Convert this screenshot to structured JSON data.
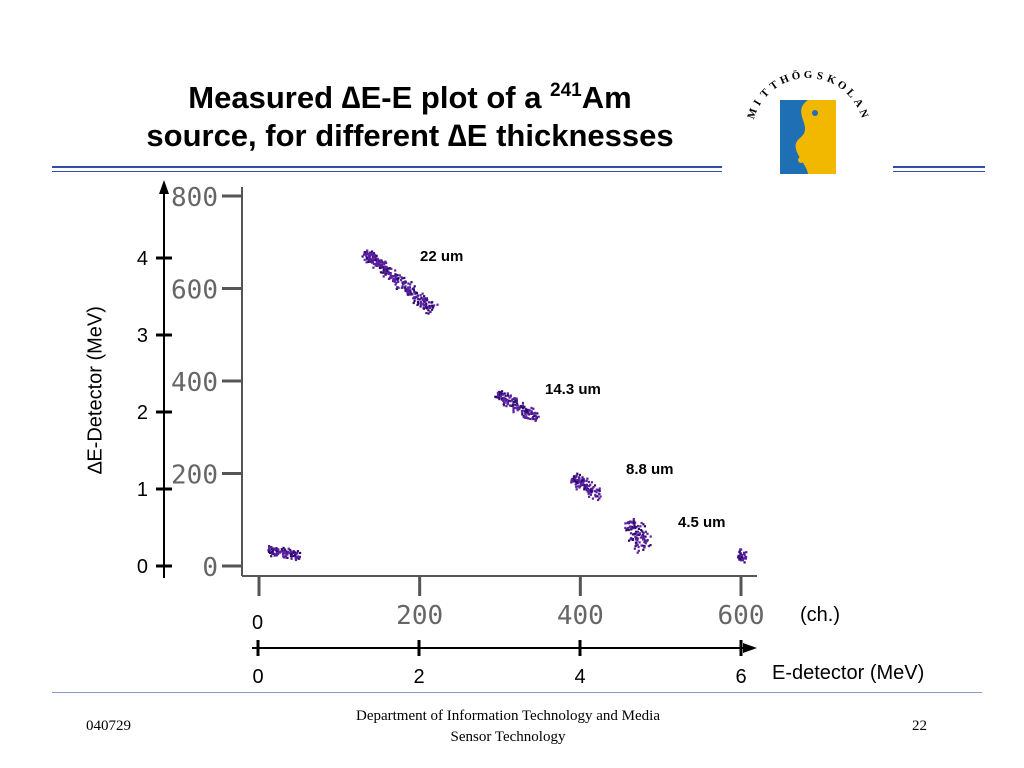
{
  "title": {
    "line1_a": "Measured ",
    "delta": "∆",
    "line1_b": "E-E plot of a ",
    "isotope_mass": "241",
    "element": "Am",
    "line2_a": "source, for different ",
    "line2_b": "E thicknesses"
  },
  "logo": {
    "name": "MITTHÖGSKOLAN",
    "letters": [
      "M",
      "I",
      "T",
      "T",
      "H",
      "Ö",
      "G",
      "S",
      "K",
      "O",
      "L",
      "A",
      "N"
    ],
    "colors": {
      "blue": "#1f6fb5",
      "yellow": "#f2b800"
    }
  },
  "colors": {
    "rule": "#2f4ea8",
    "points": "#5b1fa0",
    "points_dark": "#2a0c6e"
  },
  "chart_data": {
    "type": "scatter",
    "inner_y_ticks": [
      "800",
      "600",
      "400",
      "200",
      "0"
    ],
    "inner_x_ticks": [
      "200",
      "400",
      "600"
    ],
    "outer_y_ticks": [
      "4",
      "3",
      "2",
      "1",
      "0"
    ],
    "outer_y_label": "E-Detector (MeV)",
    "outer_y_label_prefix": "∆",
    "ch_zero": "0",
    "ch_label": "(ch.)",
    "mev_ticks": [
      "0",
      "2",
      "4",
      "6"
    ],
    "mev_label": "E-detector (MeV)",
    "xlim_ch": [
      0,
      600
    ],
    "ylim_ch": [
      0,
      800
    ],
    "clusters": [
      {
        "label": "22 um",
        "x_start": 130,
        "y_start": 680,
        "x_end": 215,
        "y_end": 555
      },
      {
        "label": "14.3 um",
        "x_start": 295,
        "y_start": 375,
        "x_end": 345,
        "y_end": 320
      },
      {
        "label": "8.8 um",
        "x_start": 390,
        "y_start": 195,
        "x_end": 425,
        "y_end": 150
      },
      {
        "label": "4.5 um",
        "x_start": 460,
        "y_start": 100,
        "x_end": 480,
        "y_end": 40
      },
      {
        "label": "",
        "x_start": 10,
        "y_start": 35,
        "x_end": 50,
        "y_end": 25
      },
      {
        "label": "",
        "x_start": 595,
        "y_start": 25,
        "x_end": 605,
        "y_end": 20
      }
    ]
  },
  "footer": {
    "date": "040729",
    "department_line1": "Department of Information Technology and Media",
    "department_line2": "Sensor Technology",
    "page": "22"
  }
}
